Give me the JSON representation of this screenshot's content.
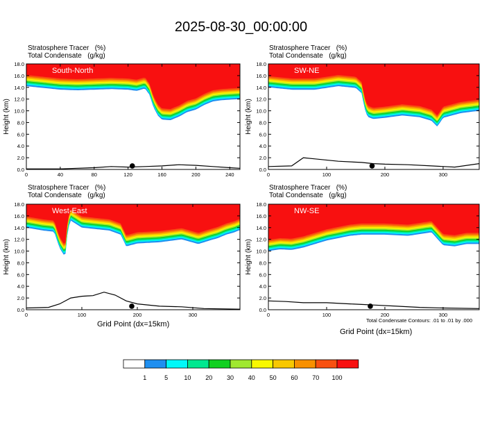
{
  "title": "2025-08-30_00:00:00",
  "colors": {
    "fill_levels": [
      "#ffffff",
      "#1f8ff0",
      "#00f8f8",
      "#00e890",
      "#10d020",
      "#a0e830",
      "#f8f800",
      "#f8c800",
      "#f89000",
      "#f85010",
      "#f81010"
    ],
    "contour": "#000000",
    "background": "#ffffff"
  },
  "legend": {
    "labels": [
      "1",
      "5",
      "10",
      "20",
      "30",
      "40",
      "50",
      "60",
      "70",
      "100"
    ]
  },
  "footnote": "Total Condensate Contours: .01 to .01 by .000",
  "chart_data": [
    {
      "type": "heatmap",
      "panel_label": "South-North",
      "field_title": "Stratosphere Tracer",
      "field_units": "(%)",
      "contour_title": "Total Condensate",
      "contour_units": "(g/kg)",
      "xlabel": "",
      "ylabel": "Height (km)",
      "xlim": [
        0,
        252
      ],
      "ylim": [
        0,
        18
      ],
      "xticks": [
        "0",
        "40",
        "80",
        "120",
        "160",
        "200",
        "240"
      ],
      "yticks": [
        "0.0",
        "2.0",
        "4.0",
        "6.0",
        "8.0",
        "10.0",
        "12.0",
        "14.0",
        "16.0",
        "18.0"
      ],
      "tracer_base_x": [
        0,
        20,
        40,
        60,
        80,
        100,
        120,
        130,
        140,
        145,
        150,
        155,
        160,
        170,
        180,
        190,
        200,
        210,
        220,
        230,
        240,
        252
      ],
      "tracer_base_y": [
        14.2,
        13.9,
        13.6,
        13.5,
        13.6,
        13.7,
        13.6,
        13.4,
        13.8,
        12.8,
        10.6,
        9.2,
        8.5,
        8.4,
        9.0,
        9.8,
        10.2,
        11.0,
        11.6,
        11.8,
        11.9,
        12.0
      ],
      "terrain_x": [
        0,
        40,
        60,
        80,
        100,
        120,
        140,
        160,
        180,
        200,
        220,
        240,
        252
      ],
      "terrain_y": [
        0.1,
        0.1,
        0.2,
        0.3,
        0.5,
        0.4,
        0.5,
        0.6,
        0.8,
        0.7,
        0.5,
        0.3,
        0.2
      ],
      "marker_x": 125
    },
    {
      "type": "heatmap",
      "panel_label": "SW-NE",
      "field_title": "Stratosphere Tracer",
      "field_units": "(%)",
      "contour_title": "Total Condensate",
      "contour_units": "(g/kg)",
      "xlabel": "",
      "ylabel": "Height (km)",
      "xlim": [
        0,
        362
      ],
      "ylim": [
        0,
        18
      ],
      "xticks": [
        "0",
        "100",
        "200",
        "300"
      ],
      "yticks": [
        "0.0",
        "2.0",
        "4.0",
        "6.0",
        "8.0",
        "10.0",
        "12.0",
        "14.0",
        "16.0",
        "18.0"
      ],
      "tracer_base_x": [
        0,
        40,
        80,
        120,
        150,
        160,
        165,
        170,
        180,
        200,
        230,
        260,
        280,
        290,
        300,
        330,
        362
      ],
      "tracer_base_y": [
        14.0,
        13.6,
        13.6,
        14.2,
        13.9,
        13.0,
        10.5,
        9.0,
        8.6,
        8.8,
        9.2,
        8.9,
        8.3,
        7.3,
        8.8,
        9.6,
        10.0
      ],
      "terrain_x": [
        0,
        40,
        60,
        80,
        120,
        160,
        180,
        200,
        240,
        280,
        320,
        362
      ],
      "terrain_y": [
        0.5,
        0.6,
        2.0,
        1.8,
        1.4,
        1.2,
        1.0,
        0.9,
        0.8,
        0.6,
        0.4,
        1.0
      ],
      "marker_x": 178
    },
    {
      "type": "heatmap",
      "panel_label": "West-East",
      "field_title": "Stratosphere Tracer",
      "field_units": "(%)",
      "contour_title": "Total Condensate",
      "contour_units": "(g/kg)",
      "xlabel": "Grid Point (dx=15km)",
      "ylabel": "Height (km)",
      "xlim": [
        0,
        385
      ],
      "ylim": [
        0,
        18
      ],
      "xticks": [
        "0",
        "100",
        "200",
        "300"
      ],
      "yticks": [
        "0.0",
        "2.0",
        "4.0",
        "6.0",
        "8.0",
        "10.0",
        "12.0",
        "14.0",
        "16.0",
        "18.0"
      ],
      "tracer_base_x": [
        0,
        30,
        50,
        60,
        70,
        75,
        80,
        100,
        150,
        170,
        180,
        200,
        240,
        280,
        310,
        330,
        345,
        360,
        375,
        385
      ],
      "tracer_base_y": [
        14.0,
        13.5,
        13.3,
        10.5,
        9.0,
        13.8,
        15.2,
        14.0,
        13.5,
        12.8,
        10.8,
        11.3,
        11.5,
        12.0,
        11.2,
        11.8,
        12.2,
        12.8,
        13.2,
        13.6
      ],
      "terrain_x": [
        0,
        40,
        60,
        80,
        100,
        120,
        140,
        160,
        180,
        200,
        240,
        280,
        320,
        385
      ],
      "terrain_y": [
        0.3,
        0.4,
        1.0,
        2.0,
        2.3,
        2.4,
        3.0,
        2.5,
        1.5,
        1.0,
        0.6,
        0.5,
        0.2,
        0.1
      ],
      "marker_x": 190
    },
    {
      "type": "heatmap",
      "panel_label": "NW-SE",
      "field_title": "Stratosphere Tracer",
      "field_units": "(%)",
      "contour_title": "Total Condensate",
      "contour_units": "(g/kg)",
      "xlabel": "Grid Point (dx=15km)",
      "ylabel": "Height (km)",
      "xlim": [
        0,
        362
      ],
      "ylim": [
        0,
        18
      ],
      "xticks": [
        "0",
        "100",
        "200",
        "300"
      ],
      "yticks": [
        "0.0",
        "2.0",
        "4.0",
        "6.0",
        "8.0",
        "10.0",
        "12.0",
        "14.0",
        "16.0",
        "18.0"
      ],
      "tracer_base_x": [
        0,
        20,
        40,
        60,
        80,
        100,
        120,
        140,
        160,
        200,
        240,
        280,
        300,
        320,
        340,
        362
      ],
      "tracer_base_y": [
        10.0,
        10.3,
        10.2,
        10.6,
        11.2,
        11.8,
        12.2,
        12.6,
        12.8,
        12.8,
        12.6,
        13.2,
        11.0,
        10.8,
        11.2,
        11.2
      ],
      "terrain_x": [
        0,
        30,
        60,
        100,
        140,
        160,
        180,
        220,
        260,
        300,
        362
      ],
      "terrain_y": [
        1.5,
        1.4,
        1.2,
        1.2,
        1.0,
        0.9,
        0.8,
        0.6,
        0.4,
        0.3,
        0.2
      ],
      "marker_x": 175
    }
  ]
}
